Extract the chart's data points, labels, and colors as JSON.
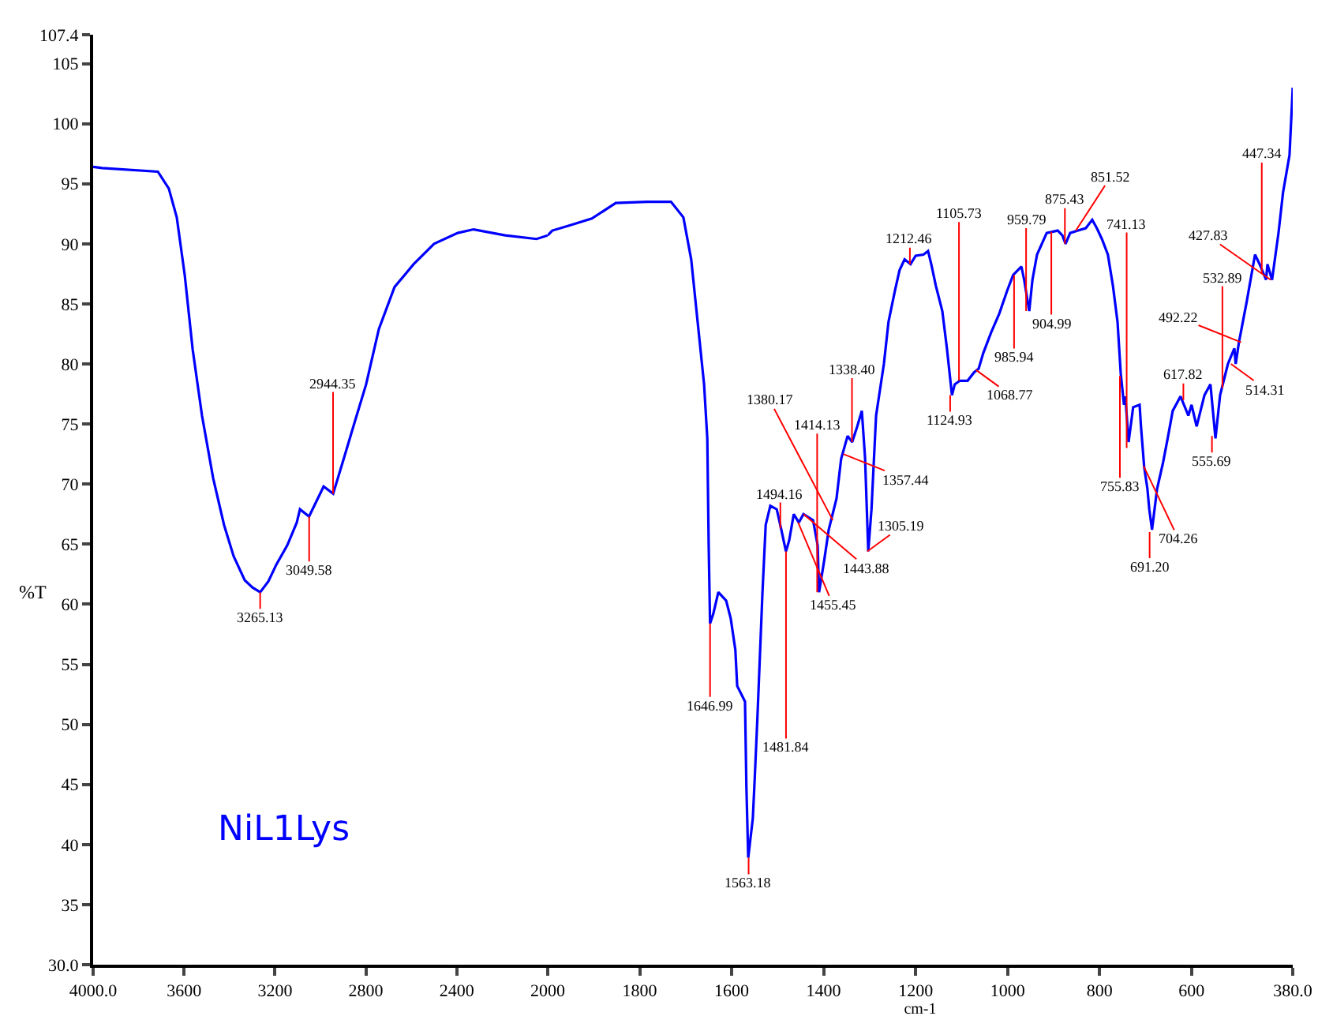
{
  "chart_data": [
    {
      "type": "line",
      "ylabel": "%T",
      "xlim": [
        4000,
        2000
      ],
      "ylim": [
        30,
        107.4
      ],
      "xticks": [
        {
          "value": 4000,
          "label": "4000.0"
        },
        3600,
        3200,
        2800,
        2400,
        2000
      ],
      "yticks": [
        {
          "value": 30,
          "label": "30.0"
        },
        35,
        40,
        45,
        50,
        55,
        60,
        65,
        70,
        75,
        80,
        85,
        90,
        95,
        100,
        105,
        107.4
      ],
      "grid": false,
      "marker": "none",
      "line_style": "solid",
      "series": [
        {
          "color": "#0000ff",
          "x": [
            4000,
            3960,
            3715,
            3667,
            3632,
            3597,
            3562,
            3521,
            3472,
            3424,
            3382,
            3333,
            3299,
            3265,
            3229,
            3194,
            3146,
            3104,
            3090,
            3050,
            2986,
            2944,
            2896,
            2847,
            2799,
            2743,
            2674,
            2590,
            2500,
            2396,
            2326,
            2187,
            2049,
            2000
          ],
          "values": [
            96.4,
            96.3,
            96.0,
            94.6,
            92.2,
            87.4,
            81.2,
            75.7,
            70.5,
            66.6,
            64.0,
            62.0,
            61.4,
            61.0,
            61.9,
            63.3,
            64.9,
            66.8,
            67.9,
            67.3,
            69.8,
            69.2,
            72.2,
            75.3,
            78.3,
            82.9,
            86.4,
            88.3,
            90.0,
            90.9,
            91.2,
            90.7,
            90.4,
            90.7
          ]
        }
      ],
      "annotations": [
        "NiL1Lys",
        {
          "text": "3265.13",
          "x": 3265.13,
          "y": 61.0
        },
        {
          "text": "3049.58",
          "x": 3049.58,
          "y": 67.3
        },
        {
          "text": "2944.35",
          "x": 2944.35,
          "y": 69.2
        }
      ]
    },
    {
      "type": "line",
      "xlabel": "cm-1",
      "xlim": [
        2000,
        380
      ],
      "ylim": [
        30,
        107.4
      ],
      "tick_labels": "x",
      "xticks": [
        1800,
        1600,
        1400,
        1200,
        1000,
        800,
        600,
        {
          "value": 380,
          "label": "380.0"
        }
      ],
      "grid": false,
      "marker": "none",
      "line_style": "solid",
      "series": [
        {
          "color": "#0000ff",
          "x": [
            2000,
            1990,
            1955,
            1904,
            1852,
            1784,
            1732,
            1705,
            1688,
            1674,
            1660,
            1653,
            1650,
            1647,
            1640,
            1629,
            1612,
            1602,
            1592,
            1588,
            1571,
            1568,
            1564,
            1554,
            1550,
            1544,
            1533,
            1526,
            1516,
            1502,
            1492,
            1482,
            1475,
            1465,
            1454,
            1444,
            1423,
            1413,
            1410,
            1399,
            1389,
            1372,
            1362,
            1348,
            1338,
            1327,
            1317,
            1310,
            1303,
            1296,
            1286,
            1269,
            1259,
            1245,
            1235,
            1224,
            1211,
            1200,
            1183,
            1173,
            1166,
            1156,
            1142,
            1132,
            1121,
            1115,
            1104,
            1087,
            1073,
            1063,
            1053,
            1036,
            1018,
            1001,
            988,
            970,
            964,
            953,
            946,
            936,
            915,
            891,
            881,
            874,
            864,
            847,
            830,
            816,
            806,
            795,
            782,
            771,
            761,
            754,
            747,
            744,
            737,
            727,
            713,
            710,
            703,
            696,
            692,
            686,
            675,
            662,
            651,
            641,
            624,
            607,
            600,
            589,
            572,
            559,
            548,
            538,
            521,
            507,
            504,
            497,
            480,
            462,
            452,
            438,
            435,
            425,
            411,
            401,
            387,
            380
          ],
          "values": [
            90.7,
            91.1,
            91.5,
            92.1,
            93.4,
            93.5,
            93.5,
            92.2,
            88.7,
            83.5,
            78.3,
            73.8,
            64.9,
            58.4,
            59.2,
            61.0,
            60.3,
            58.8,
            56.2,
            53.2,
            51.9,
            44.8,
            38.9,
            42.2,
            45.4,
            50.6,
            61.0,
            66.6,
            68.2,
            67.9,
            66.2,
            64.4,
            65.3,
            67.5,
            66.8,
            67.5,
            67.0,
            64.9,
            61.0,
            63.6,
            66.2,
            68.8,
            72.1,
            74.0,
            73.5,
            74.8,
            76.1,
            72.2,
            64.4,
            67.9,
            75.7,
            80.0,
            83.5,
            86.1,
            87.8,
            88.7,
            88.3,
            89.0,
            89.1,
            89.4,
            88.3,
            86.5,
            84.4,
            81.3,
            77.4,
            78.3,
            78.6,
            78.6,
            79.3,
            79.6,
            80.9,
            82.6,
            84.2,
            86.1,
            87.4,
            88.1,
            87.0,
            84.4,
            87.0,
            89.1,
            90.9,
            91.1,
            90.7,
            90.0,
            90.9,
            91.1,
            91.3,
            92.0,
            91.3,
            90.4,
            89.1,
            86.5,
            83.5,
            79.2,
            76.6,
            77.3,
            73.5,
            76.4,
            76.6,
            74.8,
            71.4,
            69.6,
            67.9,
            66.2,
            69.6,
            71.8,
            74.0,
            76.1,
            77.3,
            75.7,
            76.6,
            74.8,
            77.4,
            78.3,
            73.8,
            77.4,
            80.0,
            81.3,
            80.0,
            81.8,
            85.2,
            89.1,
            88.3,
            87.0,
            88.3,
            87.0,
            90.9,
            94.3,
            97.4,
            103.0
          ]
        }
      ],
      "annotations": [
        {
          "text": "1646.99",
          "x": 1646.99,
          "y": 58.4
        },
        {
          "text": "1563.18",
          "x": 1563.18,
          "y": 38.9
        },
        {
          "text": "1494.16",
          "x": 1494.16,
          "y": 66.3
        },
        {
          "text": "1481.84",
          "x": 1481.84,
          "y": 64.4
        },
        {
          "text": "1455.45",
          "x": 1455.45,
          "y": 66.8
        },
        {
          "text": "1443.88",
          "x": 1443.88,
          "y": 67.5
        },
        {
          "text": "1414.13",
          "x": 1414.13,
          "y": 61.0
        },
        {
          "text": "1380.17",
          "x": 1380.17,
          "y": 67.0
        },
        {
          "text": "1357.44",
          "x": 1357.44,
          "y": 72.5
        },
        {
          "text": "1338.40",
          "x": 1338.4,
          "y": 73.5
        },
        {
          "text": "1305.19",
          "x": 1305.19,
          "y": 64.4
        },
        {
          "text": "1212.46",
          "x": 1212.46,
          "y": 88.3
        },
        {
          "text": "1124.93",
          "x": 1124.93,
          "y": 77.4
        },
        {
          "text": "1105.73",
          "x": 1105.73,
          "y": 78.6
        },
        {
          "text": "1068.77",
          "x": 1068.77,
          "y": 79.5
        },
        {
          "text": "985.94",
          "x": 985.94,
          "y": 87.4
        },
        {
          "text": "959.79",
          "x": 959.79,
          "y": 84.4
        },
        {
          "text": "904.99",
          "x": 904.99,
          "y": 91.0
        },
        {
          "text": "875.43",
          "x": 875.43,
          "y": 90.0
        },
        {
          "text": "851.52",
          "x": 851.52,
          "y": 91.1
        },
        {
          "text": "755.83",
          "x": 755.83,
          "y": 79.0
        },
        {
          "text": "741.13",
          "x": 741.13,
          "y": 73.0
        },
        {
          "text": "704.26",
          "x": 704.26,
          "y": 71.5
        },
        {
          "text": "691.20",
          "x": 691.2,
          "y": 66.0
        },
        {
          "text": "617.82",
          "x": 617.82,
          "y": 77.0
        },
        {
          "text": "555.69",
          "x": 555.69,
          "y": 74.0
        },
        {
          "text": "532.89",
          "x": 532.89,
          "y": 78.0
        },
        {
          "text": "514.31",
          "x": 514.31,
          "y": 80.0
        },
        {
          "text": "492.22",
          "x": 492.22,
          "y": 81.8
        },
        {
          "text": "447.34",
          "x": 447.34,
          "y": 87.5
        },
        {
          "text": "427.83",
          "x": 427.83,
          "y": 87.0
        }
      ]
    }
  ]
}
